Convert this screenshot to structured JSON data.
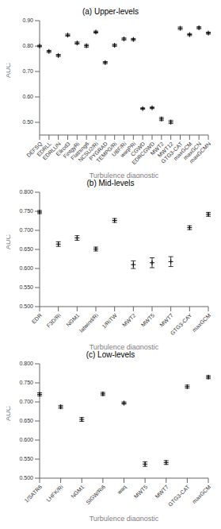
{
  "chart_data": [
    {
      "type": "scatter",
      "title": "(a) Upper-levels",
      "x_label": "Turbulence diagnostic",
      "y_label": "AUC",
      "categories": [
        "DEFSQ",
        "EDRLL",
        "EDRLUN",
        "Ellrod3",
        "FintgyRi",
        "Flatning6",
        "NCSU2/Ri",
        "PYGRAD",
        "TEMPG/Ri",
        "UBF/Ri",
        "waqPRi",
        "CGWD",
        "EDRCGWD",
        "MWT2",
        "MWT12",
        "GTG3-CAT",
        "maxGCM",
        "maxGCN",
        "maxGCMN"
      ],
      "values": [
        0.8,
        0.779,
        0.763,
        0.843,
        0.812,
        0.801,
        0.855,
        0.735,
        0.803,
        0.828,
        0.826,
        0.554,
        0.557,
        0.513,
        0.501,
        0.87,
        0.845,
        0.872,
        0.851
      ],
      "upper": [
        0.803,
        0.783,
        0.767,
        0.847,
        0.816,
        0.806,
        0.859,
        0.739,
        0.807,
        0.832,
        0.83,
        0.557,
        0.56,
        0.519,
        0.507,
        0.875,
        0.849,
        0.876,
        0.855
      ],
      "lower": [
        0.797,
        0.775,
        0.759,
        0.839,
        0.808,
        0.796,
        0.851,
        0.731,
        0.799,
        0.824,
        0.822,
        0.551,
        0.554,
        0.507,
        0.495,
        0.865,
        0.841,
        0.868,
        0.847
      ],
      "color": "#000000",
      "marker": "plus",
      "grid": false,
      "ylim": [
        0.45,
        0.9
      ],
      "yticks": [
        {
          "value": 0.5,
          "label": "0.50"
        },
        {
          "value": 0.6,
          "label": "0.60"
        },
        {
          "value": 0.7,
          "label": "0.70"
        },
        {
          "value": 0.8,
          "label": "0.80"
        },
        {
          "value": 0.9,
          "label": "0.90"
        }
      ]
    },
    {
      "type": "scatter",
      "title": "(b) Mid-levels",
      "x_label": "Turbulence diagnostic",
      "y_label": "AUC",
      "categories": [
        "EDR",
        "F3D/Ri",
        "NGM1",
        "latwind/Ri",
        "1/RiTW",
        "MWT2",
        "MWT5",
        "MWT7",
        "GTG3-CAY",
        "maxGCM"
      ],
      "values": [
        0.748,
        0.664,
        0.68,
        0.651,
        0.726,
        0.61,
        0.615,
        0.618,
        0.707,
        0.742
      ],
      "upper": [
        0.752,
        0.67,
        0.686,
        0.656,
        0.731,
        0.62,
        0.628,
        0.631,
        0.712,
        0.747
      ],
      "lower": [
        0.744,
        0.658,
        0.674,
        0.646,
        0.721,
        0.6,
        0.602,
        0.605,
        0.702,
        0.737
      ],
      "color": "#000000",
      "marker": "plus",
      "grid": false,
      "ylim": [
        0.5,
        0.8
      ],
      "yticks": [
        {
          "value": 0.5,
          "label": "0.500"
        },
        {
          "value": 0.55,
          "label": "0.550"
        },
        {
          "value": 0.6,
          "label": "0.600"
        },
        {
          "value": 0.65,
          "label": "0.650"
        },
        {
          "value": 0.7,
          "label": "0.700"
        },
        {
          "value": 0.75,
          "label": "0.750"
        },
        {
          "value": 0.8,
          "label": "0.800"
        }
      ]
    },
    {
      "type": "scatter",
      "title": "(c) Low-levels",
      "x_label": "Turbulence diagnostic",
      "y_label": "AUC",
      "categories": [
        "1/SATR6",
        "LHFK/Ri",
        "NGM1",
        "SIGW/Ri6",
        "waq",
        "MWT5",
        "MWT7",
        "GTG3-CAT",
        "maxGCM"
      ],
      "values": [
        0.72,
        0.687,
        0.654,
        0.721,
        0.697,
        0.537,
        0.541,
        0.74,
        0.765
      ],
      "upper": [
        0.724,
        0.691,
        0.659,
        0.725,
        0.7,
        0.543,
        0.546,
        0.744,
        0.769
      ],
      "lower": [
        0.716,
        0.683,
        0.649,
        0.717,
        0.694,
        0.531,
        0.536,
        0.736,
        0.761
      ],
      "color": "#000000",
      "marker": "plus",
      "grid": false,
      "ylim": [
        0.5,
        0.8
      ],
      "yticks": [
        {
          "value": 0.5,
          "label": "0.500"
        },
        {
          "value": 0.55,
          "label": "0.550"
        },
        {
          "value": 0.6,
          "label": "0.600"
        },
        {
          "value": 0.65,
          "label": "0.650"
        },
        {
          "value": 0.7,
          "label": "0.700"
        },
        {
          "value": 0.75,
          "label": "0.750"
        },
        {
          "value": 0.8,
          "label": "0.800"
        }
      ]
    }
  ]
}
